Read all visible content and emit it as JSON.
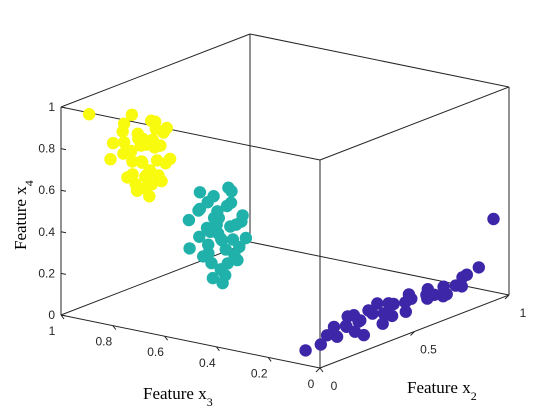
{
  "chart_data": {
    "type": "scatter",
    "title": "",
    "xlabel": "Feature x",
    "xlabel_sub": "3",
    "ylabel": "Feature x",
    "ylabel_sub": "2",
    "zlabel": "Feature x",
    "zlabel_sub": "4",
    "x_range": [
      0,
      1
    ],
    "y_range": [
      0,
      1
    ],
    "z_range": [
      0,
      1
    ],
    "x_ticks": [
      "0",
      "0.2",
      "0.4",
      "0.6",
      "0.8",
      "1"
    ],
    "y_ticks": [
      "0",
      "0.5",
      "1"
    ],
    "z_ticks": [
      "0",
      "0.2",
      "0.4",
      "0.6",
      "0.8",
      "1"
    ],
    "grid": false,
    "legend": "none",
    "view": "3d",
    "series": [
      {
        "color": "#3e26a8",
        "points": [
          [
            0.06,
            0.12,
            0.1
          ],
          [
            0.08,
            0.2,
            0.06
          ],
          [
            0.07,
            0.3,
            0.1
          ],
          [
            0.05,
            0.4,
            0.06
          ],
          [
            0.09,
            0.27,
            0.13
          ],
          [
            0.1,
            0.35,
            0.08
          ],
          [
            0.04,
            0.24,
            0.08
          ],
          [
            0.07,
            0.17,
            0.12
          ],
          [
            0.11,
            0.33,
            0.11
          ],
          [
            0.05,
            0.45,
            0.08
          ],
          [
            0.08,
            0.25,
            0.09
          ],
          [
            0.06,
            0.36,
            0.12
          ],
          [
            0.1,
            0.5,
            0.11
          ],
          [
            0.07,
            0.55,
            0.06
          ],
          [
            0.09,
            0.6,
            0.1
          ],
          [
            0.06,
            0.65,
            0.09
          ],
          [
            0.08,
            0.58,
            0.13
          ],
          [
            0.1,
            0.7,
            0.08
          ],
          [
            0.05,
            0.52,
            0.12
          ],
          [
            0.07,
            0.75,
            0.11
          ],
          [
            0.09,
            0.48,
            0.07
          ],
          [
            0.08,
            0.68,
            0.12
          ],
          [
            0.06,
            0.8,
            0.1
          ],
          [
            0.1,
            0.62,
            0.09
          ],
          [
            0.07,
            0.85,
            0.12
          ],
          [
            0.09,
            0.9,
            0.11
          ],
          [
            0.05,
            0.72,
            0.08
          ],
          [
            0.08,
            0.95,
            0.13
          ],
          [
            0.06,
            0.42,
            0.1
          ],
          [
            0.09,
            0.38,
            0.12
          ],
          [
            0.07,
            0.1,
            0.06
          ],
          [
            0.11,
            0.54,
            0.09
          ],
          [
            0.04,
            0.66,
            0.11
          ],
          [
            0.08,
            0.78,
            0.06
          ],
          [
            0.06,
            0.22,
            0.11
          ],
          [
            0.1,
            0.44,
            0.13
          ],
          [
            0.05,
            0.3,
            0.04
          ],
          [
            0.07,
            0.02,
            0.06
          ],
          [
            0.06,
            1.0,
            0.35
          ],
          [
            0.08,
            0.86,
            0.07
          ]
        ]
      },
      {
        "color": "#20b2aa",
        "points": [
          [
            0.4,
            0.05,
            0.45
          ],
          [
            0.45,
            0.07,
            0.55
          ],
          [
            0.42,
            0.04,
            0.6
          ],
          [
            0.38,
            0.06,
            0.5
          ],
          [
            0.5,
            0.05,
            0.62
          ],
          [
            0.44,
            0.08,
            0.48
          ],
          [
            0.36,
            0.05,
            0.58
          ],
          [
            0.48,
            0.06,
            0.53
          ],
          [
            0.41,
            0.07,
            0.65
          ],
          [
            0.46,
            0.04,
            0.42
          ],
          [
            0.39,
            0.06,
            0.56
          ],
          [
            0.52,
            0.07,
            0.6
          ],
          [
            0.43,
            0.05,
            0.52
          ],
          [
            0.37,
            0.08,
            0.46
          ],
          [
            0.47,
            0.05,
            0.66
          ],
          [
            0.4,
            0.06,
            0.38
          ],
          [
            0.55,
            0.06,
            0.55
          ],
          [
            0.35,
            0.07,
            0.62
          ],
          [
            0.44,
            0.04,
            0.7
          ],
          [
            0.49,
            0.08,
            0.44
          ],
          [
            0.42,
            0.05,
            0.35
          ],
          [
            0.38,
            0.05,
            0.68
          ],
          [
            0.51,
            0.06,
            0.48
          ],
          [
            0.46,
            0.07,
            0.58
          ],
          [
            0.33,
            0.06,
            0.52
          ],
          [
            0.45,
            0.05,
            0.3
          ],
          [
            0.4,
            0.08,
            0.72
          ],
          [
            0.48,
            0.04,
            0.4
          ],
          [
            0.43,
            0.07,
            0.48
          ],
          [
            0.36,
            0.04,
            0.44
          ],
          [
            0.54,
            0.05,
            0.42
          ],
          [
            0.41,
            0.06,
            0.32
          ],
          [
            0.47,
            0.07,
            0.36
          ],
          [
            0.39,
            0.05,
            0.75
          ],
          [
            0.44,
            0.06,
            0.62
          ],
          [
            0.5,
            0.05,
            0.7
          ],
          [
            0.37,
            0.07,
            0.4
          ],
          [
            0.42,
            0.06,
            0.28
          ],
          [
            0.46,
            0.05,
            0.52
          ],
          [
            0.34,
            0.05,
            0.6
          ]
        ]
      },
      {
        "color": "#f9fb0e",
        "points": [
          [
            0.7,
            0.06,
            0.75
          ],
          [
            0.75,
            0.08,
            0.85
          ],
          [
            0.72,
            0.05,
            0.9
          ],
          [
            0.68,
            0.07,
            0.8
          ],
          [
            0.8,
            0.06,
            0.95
          ],
          [
            0.74,
            0.09,
            0.7
          ],
          [
            0.66,
            0.06,
            0.88
          ],
          [
            0.78,
            0.07,
            0.82
          ],
          [
            0.71,
            0.08,
            0.98
          ],
          [
            0.76,
            0.05,
            0.72
          ],
          [
            0.69,
            0.07,
            0.86
          ],
          [
            0.82,
            0.08,
            0.9
          ],
          [
            0.73,
            0.06,
            0.78
          ],
          [
            0.67,
            0.09,
            0.93
          ],
          [
            0.77,
            0.06,
            1.0
          ],
          [
            0.7,
            0.07,
            0.68
          ],
          [
            0.85,
            0.07,
            0.84
          ],
          [
            0.65,
            0.08,
            0.96
          ],
          [
            0.74,
            0.05,
            0.92
          ],
          [
            0.79,
            0.09,
            0.76
          ],
          [
            0.72,
            0.06,
            0.66
          ],
          [
            0.68,
            0.06,
            0.99
          ],
          [
            0.81,
            0.07,
            0.8
          ],
          [
            0.76,
            0.08,
            0.88
          ],
          [
            0.63,
            0.07,
            0.82
          ],
          [
            0.75,
            0.06,
            0.64
          ],
          [
            0.7,
            0.09,
            0.94
          ],
          [
            0.78,
            0.05,
            0.7
          ],
          [
            0.73,
            0.08,
            0.86
          ],
          [
            0.66,
            0.05,
            0.74
          ],
          [
            0.95,
            0.08,
            0.95
          ],
          [
            0.71,
            0.07,
            0.62
          ],
          [
            0.77,
            0.08,
            0.66
          ],
          [
            0.69,
            0.06,
            0.9
          ],
          [
            0.74,
            0.07,
            0.78
          ],
          [
            0.8,
            0.06,
            0.86
          ],
          [
            0.67,
            0.08,
            0.7
          ],
          [
            0.72,
            0.07,
            0.72
          ],
          [
            0.86,
            0.07,
            0.76
          ],
          [
            0.64,
            0.06,
            0.8
          ]
        ]
      }
    ]
  }
}
